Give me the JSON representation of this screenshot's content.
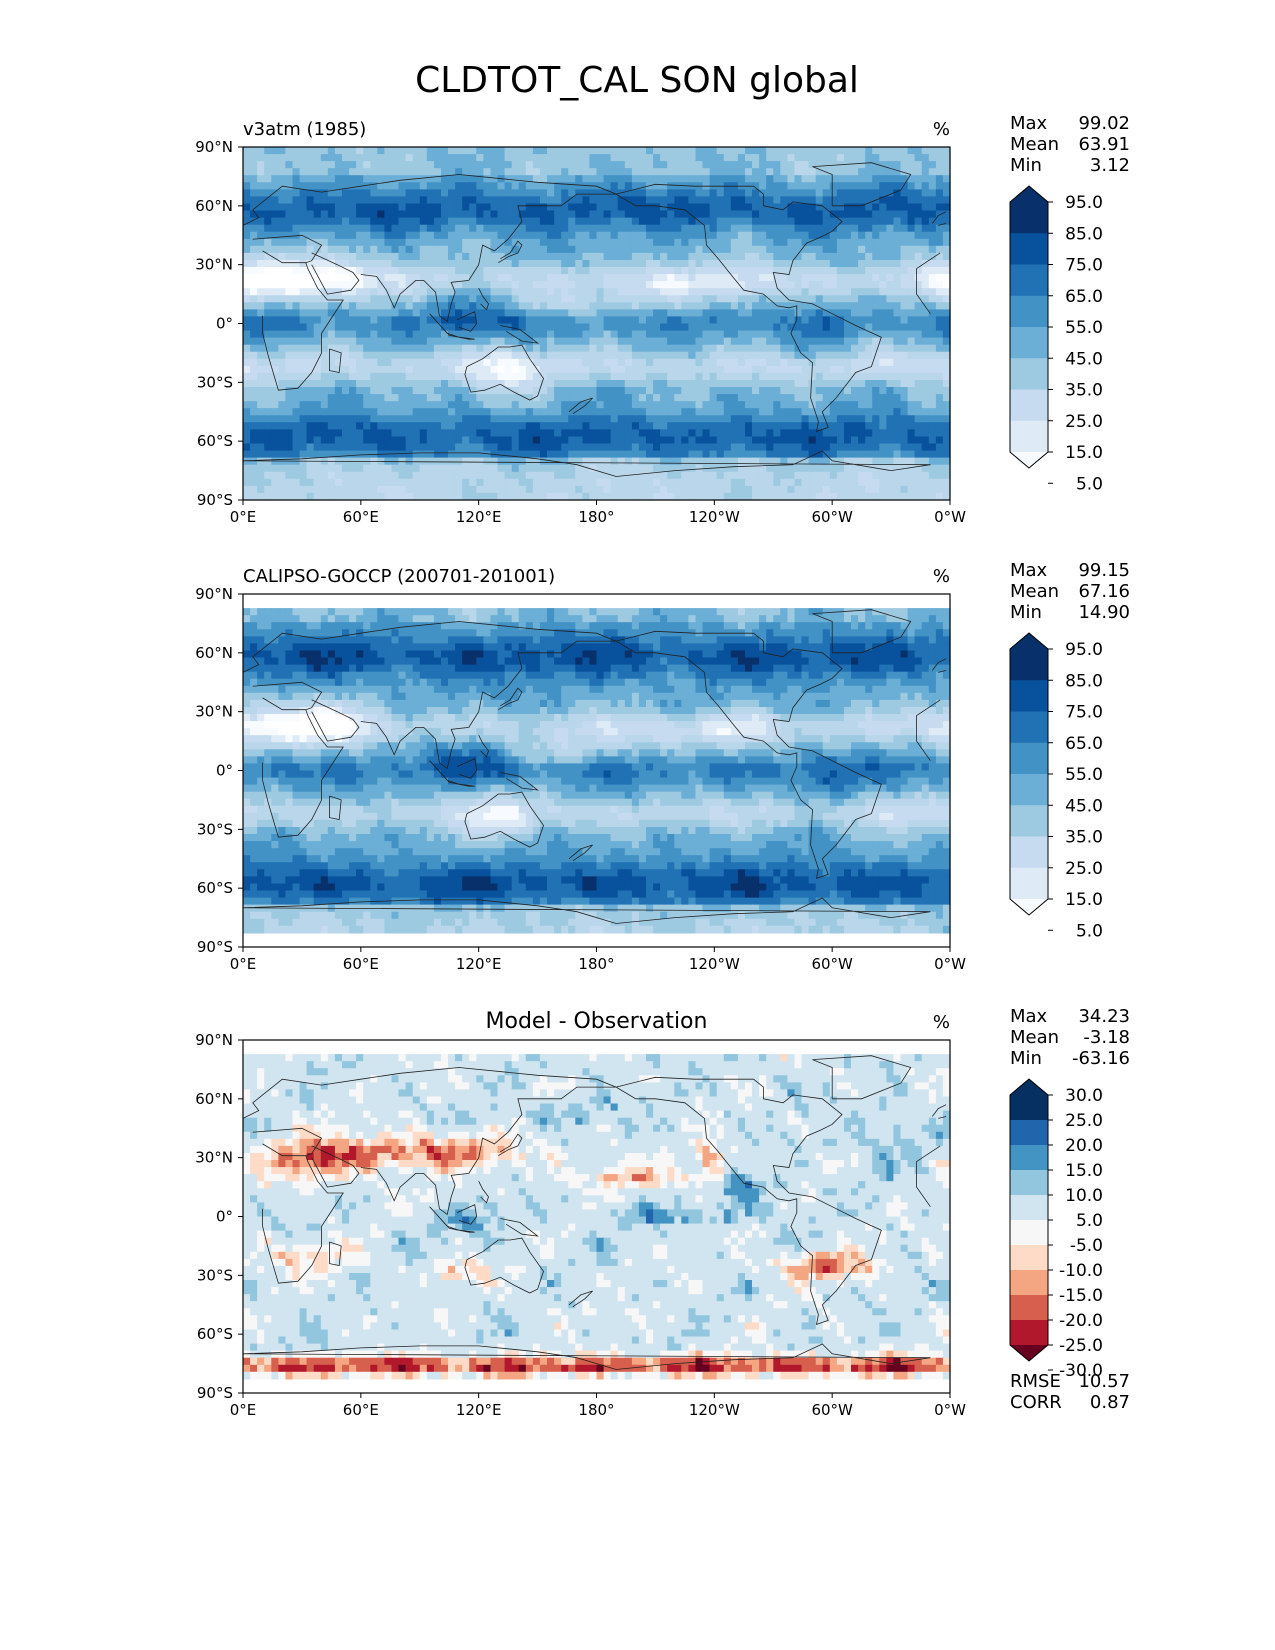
{
  "chart_data": {
    "type": "heatmap",
    "title": "CLDTOT_CAL SON global",
    "x_tick_labels": [
      "0°E",
      "60°E",
      "120°E",
      "180°",
      "120°W",
      "60°W",
      "0°W"
    ],
    "y_tick_labels": [
      "90°N",
      "60°N",
      "30°N",
      "0°",
      "30°S",
      "60°S",
      "90°S"
    ],
    "xlim": [
      0,
      360
    ],
    "ylim": [
      -90,
      90
    ],
    "panels": [
      {
        "id": "model",
        "title": "v3atm (1985)",
        "units": "%",
        "stats": {
          "max_label": "Max",
          "max": "99.02",
          "mean_label": "Mean",
          "mean": "63.91",
          "min_label": "Min",
          "min": "3.12"
        },
        "colorbar": {
          "levels": [
            "95.0",
            "85.0",
            "75.0",
            "65.0",
            "55.0",
            "45.0",
            "35.0",
            "25.0",
            "15.0",
            "5.0"
          ],
          "colors": [
            "#08306b",
            "#08519c",
            "#2171b5",
            "#4292c6",
            "#6baed6",
            "#9ecae1",
            "#c6dbef",
            "#deebf7",
            "#f7fbff"
          ]
        }
      },
      {
        "id": "obs",
        "title": "CALIPSO-GOCCP (200701-201001)",
        "units": "%",
        "stats": {
          "max_label": "Max",
          "max": "99.15",
          "mean_label": "Mean",
          "mean": "67.16",
          "min_label": "Min",
          "min": "14.90"
        },
        "colorbar": {
          "levels": [
            "95.0",
            "85.0",
            "75.0",
            "65.0",
            "55.0",
            "45.0",
            "35.0",
            "25.0",
            "15.0",
            "5.0"
          ],
          "colors": [
            "#08306b",
            "#08519c",
            "#2171b5",
            "#4292c6",
            "#6baed6",
            "#9ecae1",
            "#c6dbef",
            "#deebf7",
            "#f7fbff"
          ]
        }
      },
      {
        "id": "diff",
        "title": "Model - Observation",
        "units": "%",
        "stats": {
          "max_label": "Max",
          "max": "34.23",
          "mean_label": "Mean",
          "mean": "-3.18",
          "min_label": "Min",
          "min": "-63.16"
        },
        "metrics": {
          "rmse_label": "RMSE",
          "rmse": "10.57",
          "corr_label": "CORR",
          "corr": "0.87"
        },
        "colorbar": {
          "levels": [
            "30.0",
            "25.0",
            "20.0",
            "15.0",
            "10.0",
            "5.0",
            "-5.0",
            "-10.0",
            "-15.0",
            "-20.0",
            "-25.0",
            "-30.0"
          ],
          "colors": [
            "#053061",
            "#2166ac",
            "#4393c3",
            "#92c5de",
            "#d1e5f0",
            "#f7f7f7",
            "#fddbc7",
            "#f4a582",
            "#d6604d",
            "#b2182b",
            "#67001f"
          ]
        }
      }
    ]
  }
}
